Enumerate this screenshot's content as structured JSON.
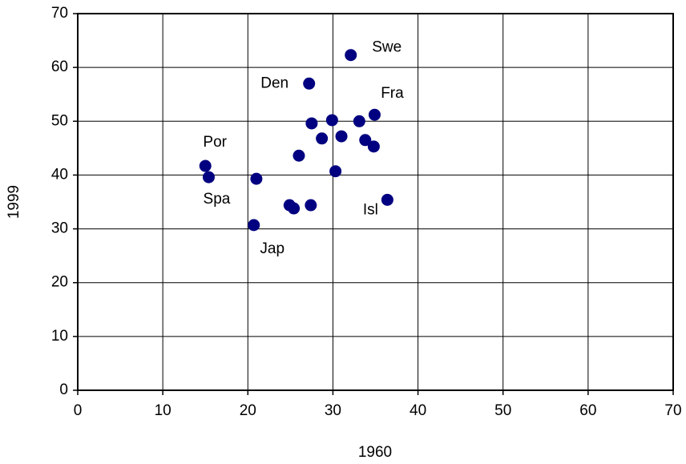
{
  "chart_data": {
    "type": "scatter",
    "x_label": "1960",
    "y_label": "1999",
    "series": [
      {
        "color": "#000080",
        "x": [
          32.1,
          27.2,
          34.9,
          33.1,
          29.9,
          27.5,
          28.7,
          31.0,
          33.8,
          34.8,
          26.0,
          15.0,
          15.4,
          21.0,
          30.3,
          20.7,
          24.9,
          25.4,
          27.4,
          36.4
        ],
        "values": [
          62.3,
          57.0,
          51.2,
          50.0,
          50.2,
          49.6,
          46.8,
          47.2,
          46.5,
          45.3,
          43.6,
          41.7,
          39.6,
          39.3,
          40.7,
          30.7,
          34.4,
          33.8,
          34.4,
          35.4
        ],
        "point_labels": [
          "Swe",
          "Den",
          "Fra",
          null,
          null,
          null,
          null,
          null,
          null,
          null,
          null,
          "Por",
          "Spa",
          null,
          null,
          "Jap",
          null,
          null,
          null,
          "Isl"
        ]
      }
    ],
    "xlim": [
      0,
      70
    ],
    "xticks": [
      0,
      10,
      20,
      30,
      40,
      50,
      60,
      70
    ],
    "ylim": [
      0,
      70
    ],
    "yticks": [
      0,
      10,
      20,
      30,
      40,
      50,
      60,
      70
    ],
    "grid": true
  }
}
